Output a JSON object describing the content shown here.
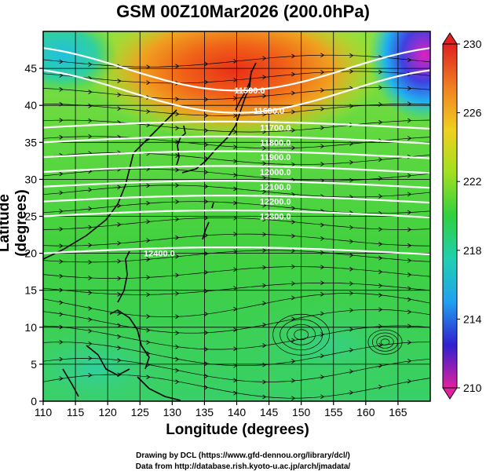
{
  "title": "GSM 00Z10Mar2026 (200.0hPa)",
  "axes": {
    "xlabel": "Longitude (degrees)",
    "ylabel": "Latitude  (degrees)",
    "xticks": [
      "110",
      "115",
      "120",
      "125",
      "130",
      "135",
      "140",
      "145",
      "150",
      "155",
      "160",
      "165"
    ],
    "yticks": [
      "0",
      "5",
      "10",
      "15",
      "20",
      "25",
      "30",
      "35",
      "40",
      "45"
    ],
    "xlim": [
      110,
      170
    ],
    "ylim": [
      0,
      50
    ]
  },
  "colorbar": {
    "ticks": [
      "230",
      "226",
      "222",
      "218",
      "214",
      "210"
    ],
    "range": [
      210,
      230
    ],
    "colors": [
      "#e020a0",
      "#3020d0",
      "#20a0f0",
      "#20d0b0",
      "#30d040",
      "#a0e020",
      "#f0d020",
      "#f08020",
      "#e02020"
    ]
  },
  "contours": [
    {
      "label": "11500.0",
      "lat": 43
    },
    {
      "label": "11600.0",
      "lat": 40
    },
    {
      "label": "11700.0",
      "lat": 37
    },
    {
      "label": "11800.0",
      "lat": 35
    },
    {
      "label": "11900.0",
      "lat": 33
    },
    {
      "label": "12000.0",
      "lat": 31
    },
    {
      "label": "12100.0",
      "lat": 29
    },
    {
      "label": "12200.0",
      "lat": 27
    },
    {
      "label": "12300.0",
      "lat": 25
    },
    {
      "label": "12400.0",
      "lat": 20
    }
  ],
  "chart_data": {
    "type": "heatmap",
    "title": "GSM 00Z10Mar2026 (200.0hPa)",
    "xlabel": "Longitude (degrees)",
    "ylabel": "Latitude  (degrees)",
    "xlim": [
      110,
      170
    ],
    "ylim": [
      0,
      50
    ],
    "field": "temperature (shaded) with geopotential height contours and wind streamlines",
    "colorbar_range": [
      210,
      230
    ],
    "contour_levels": [
      11500,
      11600,
      11700,
      11800,
      11900,
      12000,
      12100,
      12200,
      12300,
      12400
    ]
  },
  "credits": {
    "line1": "Drawing by DCL (https://www.gfd-dennou.org/library/dcl/)",
    "line2": "Data from http://database.rish.kyoto-u.ac.jp/arch/jmadata/"
  }
}
